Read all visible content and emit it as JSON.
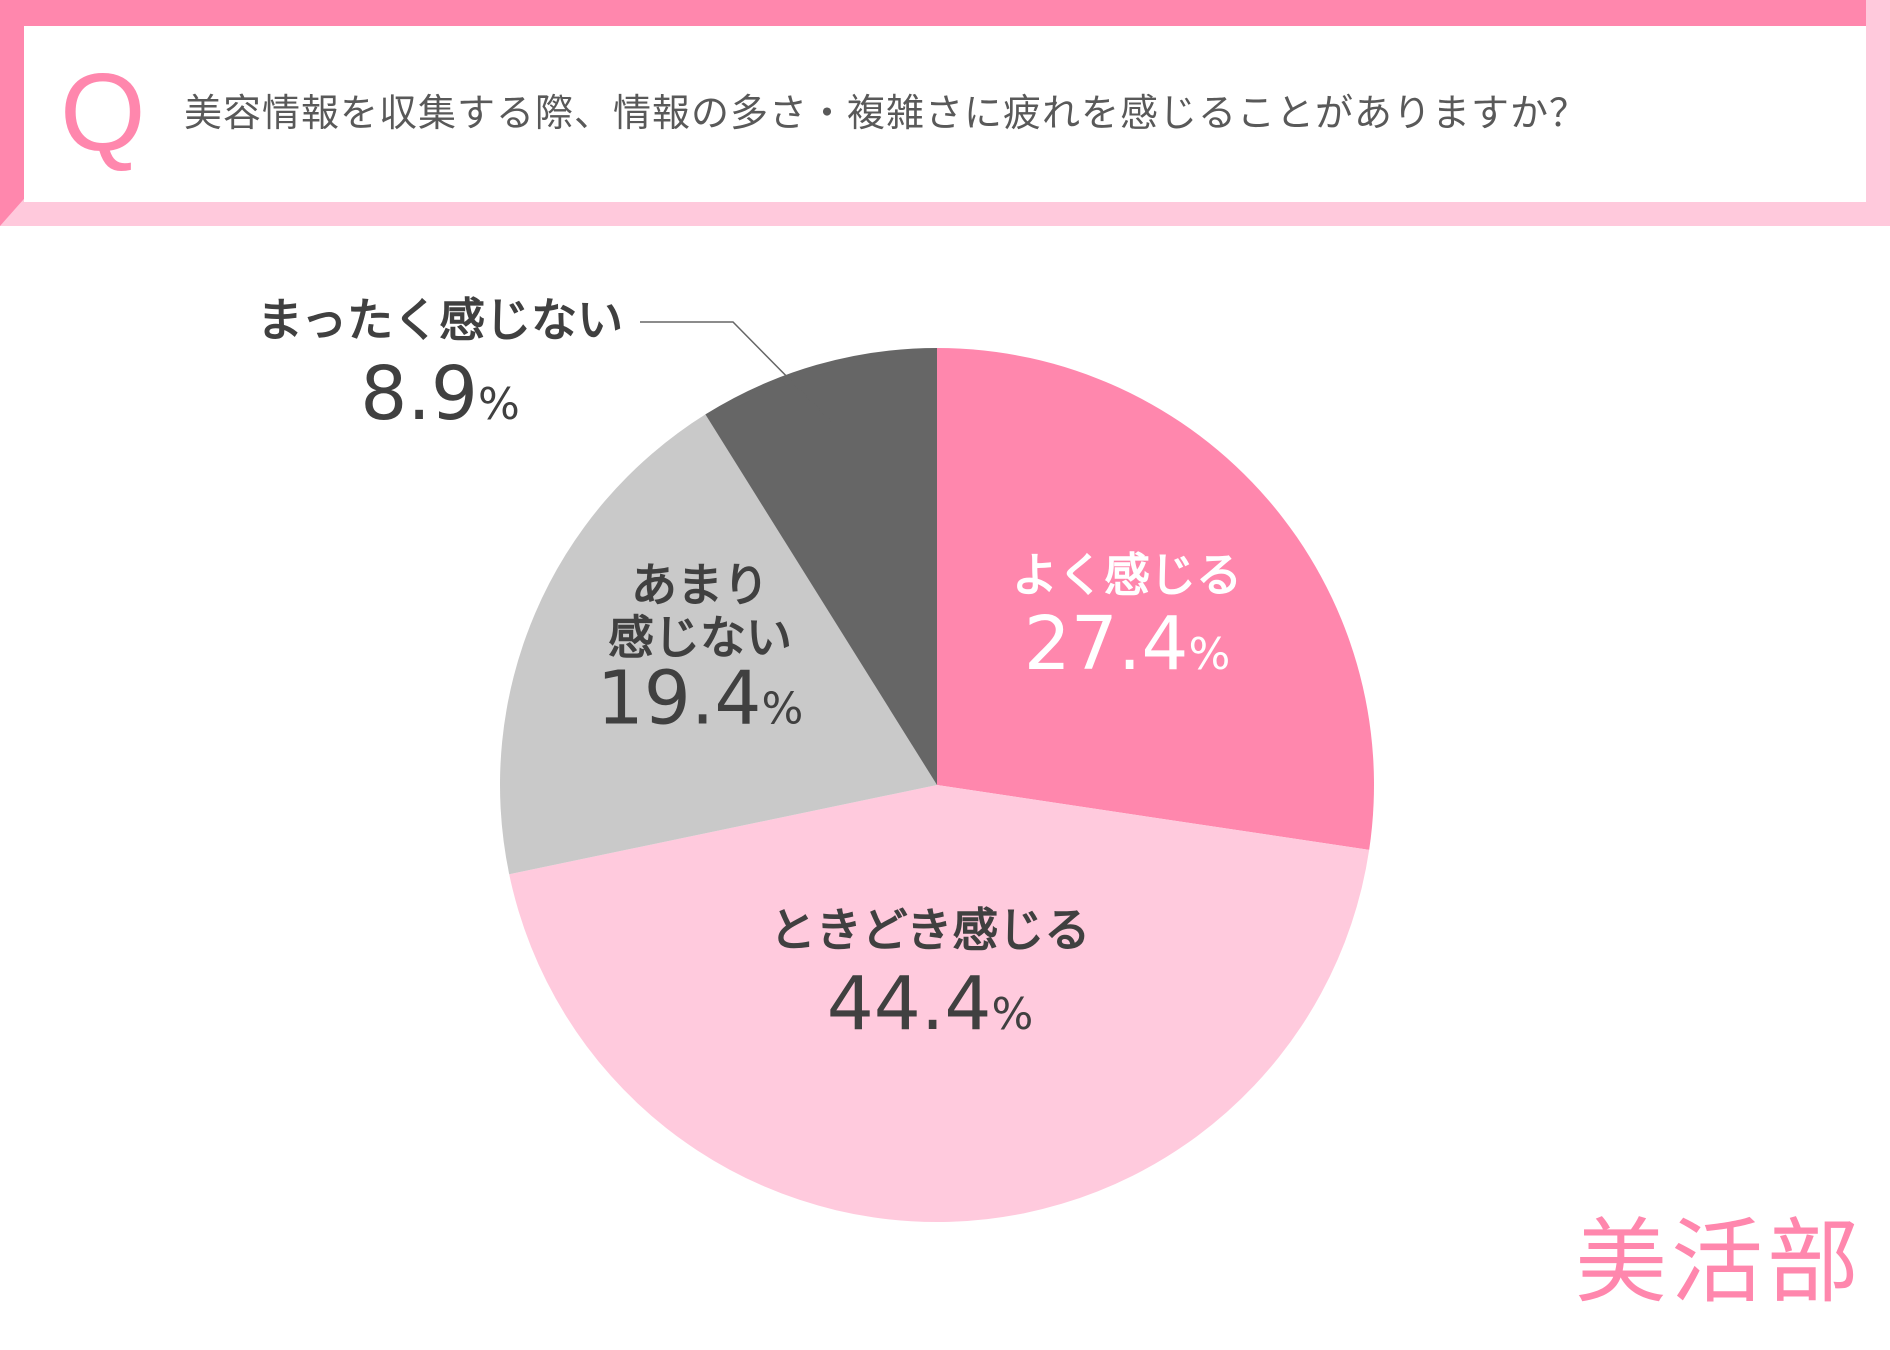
{
  "question": {
    "mark": "Q",
    "text": "美容情報を収集する際、情報の多さ・複雑さに疲れを感じることがありますか？"
  },
  "brand": "美活部",
  "colors": {
    "accent": "#ff87ad",
    "accent_light": "#ffc9dc",
    "gray_light": "#c9c9c9",
    "gray_dark": "#666666",
    "text_dark": "#404040",
    "text_white": "#ffffff"
  },
  "chart_data": {
    "type": "pie",
    "title": "",
    "slices": [
      {
        "label": "よく感じる",
        "value": 27.4,
        "display": "27.4",
        "color": "#ff87ad",
        "text_color": "#ffffff"
      },
      {
        "label": "ときどき感じる",
        "value": 44.4,
        "display": "44.4",
        "color": "#ffcadd",
        "text_color": "#404040"
      },
      {
        "label": "あまり\n感じない",
        "value": 19.4,
        "display": "19.4",
        "color": "#c9c9c9",
        "text_color": "#404040"
      },
      {
        "label": "まったく感じない",
        "value": 8.9,
        "display": "8.9",
        "color": "#666666",
        "text_color": "#404040"
      }
    ],
    "unit": "%",
    "start_angle": "12 o'clock",
    "direction": "clockwise"
  }
}
